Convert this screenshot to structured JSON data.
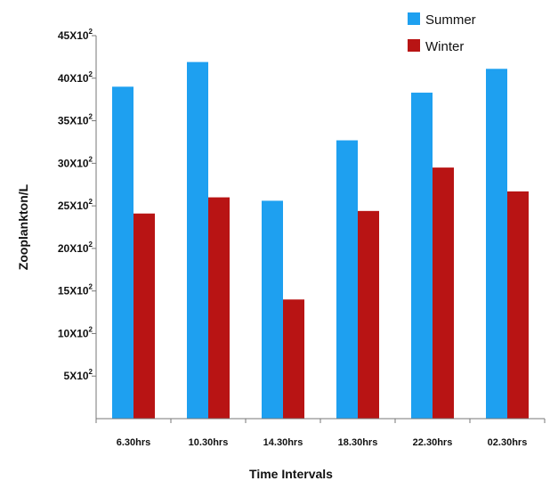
{
  "chart_data": {
    "type": "bar",
    "categories": [
      "6.30hrs",
      "10.30hrs",
      "14.30hrs",
      "18.30hrs",
      "22.30hrs",
      "02.30hrs"
    ],
    "series": [
      {
        "name": "Summer",
        "values": [
          3900,
          4190,
          2560,
          3270,
          3830,
          4110
        ],
        "color": "#1ea0f0"
      },
      {
        "name": "Winter",
        "values": [
          2410,
          2600,
          1400,
          2440,
          2950,
          2670
        ],
        "color": "#b81414"
      }
    ],
    "yticks": [
      {
        "value": 500,
        "base": "5X10",
        "exp": "2"
      },
      {
        "value": 1000,
        "base": "10X10",
        "exp": "2"
      },
      {
        "value": 1500,
        "base": "15X10",
        "exp": "2"
      },
      {
        "value": 2000,
        "base": "20X10",
        "exp": "2"
      },
      {
        "value": 2500,
        "base": "25X10",
        "exp": "2"
      },
      {
        "value": 3000,
        "base": "30X10",
        "exp": "2"
      },
      {
        "value": 3500,
        "base": "35X10",
        "exp": "2"
      },
      {
        "value": 4000,
        "base": "40X10",
        "exp": "2"
      },
      {
        "value": 4500,
        "base": "45X10",
        "exp": "2"
      }
    ],
    "title": "",
    "xlabel": "Time Intervals",
    "ylabel": "Zooplankton/L",
    "ylim": [
      0,
      4500
    ],
    "grid": false,
    "legend_position": "top-right"
  }
}
